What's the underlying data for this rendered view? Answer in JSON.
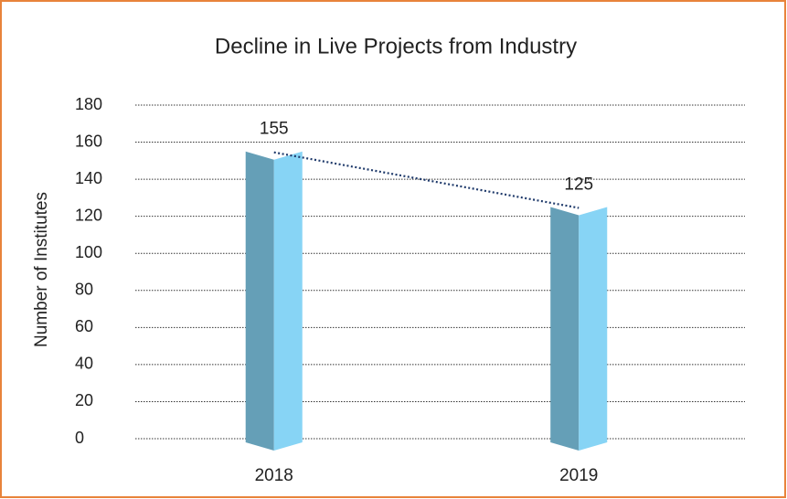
{
  "chart_data": {
    "type": "bar3d",
    "title": "Decline in Live Projects from Industry",
    "ylabel": "Number of Institutes",
    "categories": [
      "2018",
      "2019"
    ],
    "values": [
      155,
      125
    ],
    "color": "#87d4f5",
    "ylim": [
      0,
      180
    ],
    "yticks": [
      0,
      20,
      40,
      60,
      80,
      100,
      120,
      140,
      160,
      180
    ],
    "grid": true,
    "trendline": true
  }
}
